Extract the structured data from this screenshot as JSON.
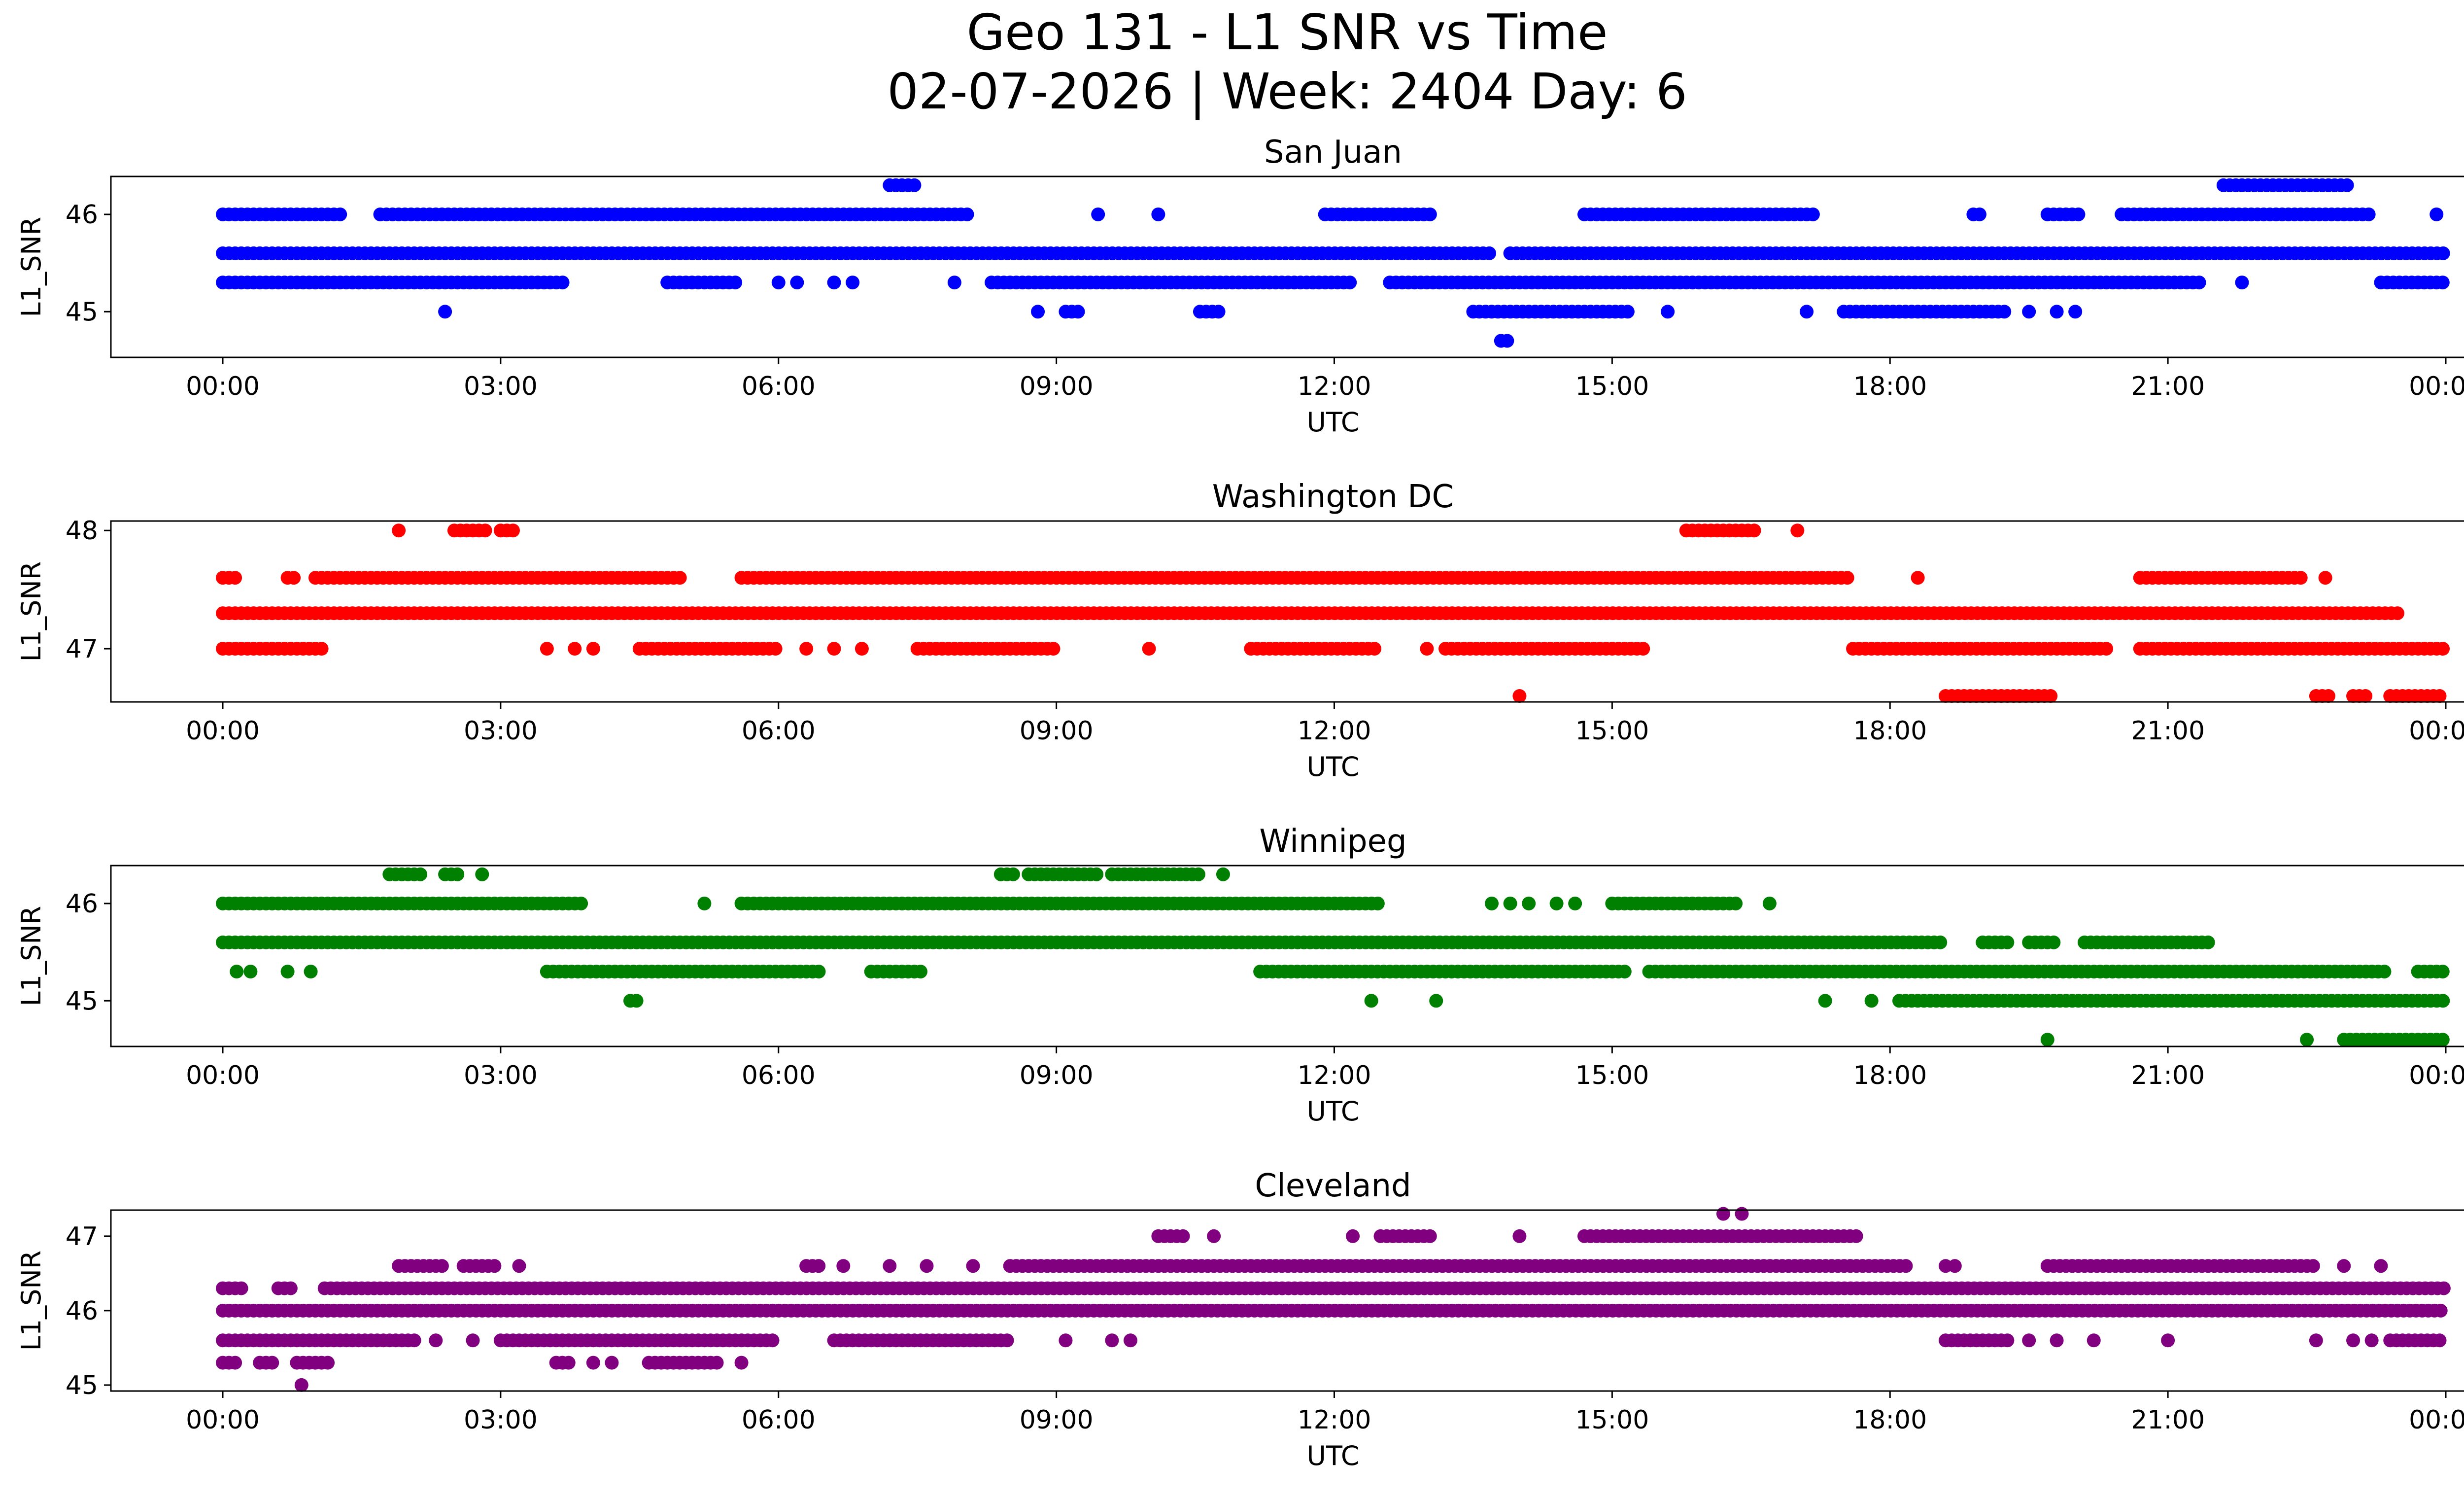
{
  "chart_data": {
    "title": "Geo 131 - L1 SNR vs Time",
    "subtitle": "02-07-2026 | Week: 2404 Day: 6",
    "type": "scatter",
    "x_unit": "hours UTC",
    "x_range": [
      0,
      24
    ],
    "x_ticks": [
      0,
      3,
      6,
      9,
      12,
      15,
      18,
      21,
      24
    ],
    "x_tick_labels": [
      "00:00",
      "03:00",
      "06:00",
      "09:00",
      "12:00",
      "15:00",
      "18:00",
      "21:00",
      "00:00"
    ],
    "subplots": [
      {
        "title": "San Juan",
        "xlabel": "UTC",
        "ylabel": "L1_SNR",
        "color": "#0000ff",
        "ylim": [
          44.53,
          46.39
        ],
        "yticks": [
          45,
          46
        ],
        "levels": [
          {
            "y": 46.3,
            "segments": [
              [
                7.2,
                7.5
              ],
              [
                21.6,
                23.0
              ]
            ]
          },
          {
            "y": 46.0,
            "segments": [
              [
                0.0,
                1.3
              ],
              [
                1.7,
                8.1
              ],
              [
                11.9,
                13.1
              ],
              [
                14.7,
                17.2
              ],
              [
                18.9,
                19.0
              ],
              [
                19.7,
                20.1
              ],
              [
                20.5,
                23.2
              ]
            ],
            "points": [
              9.45,
              10.1,
              23.9
            ]
          },
          {
            "y": 45.6,
            "segments": [
              [
                0.0,
                13.7
              ],
              [
                13.9,
                24.0
              ]
            ]
          },
          {
            "y": 45.3,
            "segments": [
              [
                0.0,
                3.7
              ],
              [
                4.8,
                5.6
              ],
              [
                8.3,
                12.2
              ],
              [
                12.6,
                21.4
              ],
              [
                23.3,
                24.0
              ]
            ],
            "points": [
              6.0,
              6.2,
              6.6,
              6.8,
              7.9,
              21.8
            ]
          },
          {
            "y": 45.0,
            "segments": [
              [
                13.5,
                15.2
              ],
              [
                17.5,
                19.3
              ],
              [
                10.55,
                10.8
              ],
              [
                9.1,
                9.3
              ]
            ],
            "points": [
              2.4,
              8.8,
              15.6,
              17.1,
              19.5,
              19.8,
              20.0
            ]
          },
          {
            "y": 44.7,
            "segments": [
              [
                13.8,
                13.9
              ]
            ]
          }
        ]
      },
      {
        "title": "Washington DC",
        "xlabel": "UTC",
        "ylabel": "L1_SNR",
        "color": "#ff0000",
        "ylim": [
          46.55,
          48.08
        ],
        "yticks": [
          47,
          48
        ],
        "levels": [
          {
            "y": 48.0,
            "segments": [
              [
                2.5,
                2.85
              ],
              [
                3.0,
                3.2
              ],
              [
                15.8,
                16.6
              ]
            ],
            "points": [
              1.9,
              17.0
            ]
          },
          {
            "y": 47.6,
            "segments": [
              [
                0.0,
                0.2
              ],
              [
                0.7,
                0.8
              ],
              [
                1.0,
                5.0
              ],
              [
                5.6,
                17.6
              ],
              [
                20.7,
                22.5
              ]
            ],
            "points": [
              18.3,
              22.7
            ]
          },
          {
            "y": 47.3,
            "segments": [
              [
                0.0,
                23.5
              ]
            ]
          },
          {
            "y": 47.0,
            "segments": [
              [
                0.0,
                1.1
              ],
              [
                4.5,
                6.0
              ],
              [
                7.5,
                9.0
              ],
              [
                11.1,
                12.5
              ],
              [
                13.2,
                15.4
              ],
              [
                17.6,
                20.4
              ],
              [
                20.7,
                24.0
              ]
            ],
            "points": [
              3.5,
              3.8,
              4.0,
              6.3,
              6.6,
              6.9,
              10.0,
              13.0
            ]
          },
          {
            "y": 46.6,
            "segments": [
              [
                18.6,
                19.8
              ],
              [
                22.6,
                22.75
              ],
              [
                23.0,
                23.2
              ],
              [
                23.4,
                24.0
              ]
            ],
            "points": [
              14.0
            ]
          }
        ]
      },
      {
        "title": "Winnipeg",
        "xlabel": "UTC",
        "ylabel": "L1_SNR",
        "color": "#008000",
        "ylim": [
          44.53,
          46.39
        ],
        "yticks": [
          45,
          46
        ],
        "levels": [
          {
            "y": 46.3,
            "segments": [
              [
                1.8,
                2.15
              ],
              [
                2.4,
                2.55
              ],
              [
                8.4,
                8.55
              ],
              [
                8.7,
                9.5
              ],
              [
                9.6,
                10.6
              ]
            ],
            "points": [
              2.8,
              10.8
            ]
          },
          {
            "y": 46.0,
            "segments": [
              [
                0.0,
                3.9
              ],
              [
                5.6,
                12.5
              ],
              [
                15.0,
                16.4
              ]
            ],
            "points": [
              5.2,
              13.7,
              13.9,
              14.1,
              14.4,
              14.6,
              16.7
            ]
          },
          {
            "y": 45.6,
            "segments": [
              [
                0.0,
                18.6
              ],
              [
                19.0,
                19.3
              ],
              [
                19.5,
                19.8
              ],
              [
                20.1,
                21.5
              ]
            ]
          },
          {
            "y": 45.3,
            "segments": [
              [
                3.5,
                6.5
              ],
              [
                7.0,
                7.6
              ],
              [
                11.2,
                15.2
              ],
              [
                15.4,
                23.4
              ],
              [
                23.7,
                24.0
              ]
            ],
            "points": [
              0.15,
              0.3,
              0.7,
              0.95
            ]
          },
          {
            "y": 45.0,
            "segments": [
              [
                18.1,
                24.0
              ],
              [
                4.4,
                4.5
              ]
            ],
            "points": [
              12.4,
              13.1,
              17.3,
              17.8
            ]
          },
          {
            "y": 44.6,
            "segments": [
              [
                22.9,
                24.0
              ]
            ],
            "points": [
              19.7,
              22.5
            ]
          }
        ]
      },
      {
        "title": "Cleveland",
        "xlabel": "UTC",
        "ylabel": "L1_SNR",
        "color": "#800080",
        "ylim": [
          44.92,
          47.35
        ],
        "yticks": [
          45,
          46,
          47
        ],
        "levels": [
          {
            "y": 47.3,
            "points": [
              16.2,
              16.4
            ]
          },
          {
            "y": 47.0,
            "segments": [
              [
                10.1,
                10.4
              ],
              [
                12.5,
                13.1
              ],
              [
                14.7,
                17.7
              ]
            ],
            "points": [
              10.7,
              12.2,
              14.0
            ]
          },
          {
            "y": 46.6,
            "segments": [
              [
                1.9,
                2.4
              ],
              [
                2.6,
                3.0
              ],
              [
                6.3,
                6.5
              ],
              [
                8.5,
                18.2
              ],
              [
                19.7,
                22.6
              ]
            ],
            "points": [
              3.2,
              6.7,
              7.2,
              7.6,
              8.1,
              18.6,
              18.7,
              22.9,
              23.3
            ]
          },
          {
            "y": 46.3,
            "segments": [
              [
                0.0,
                0.25
              ],
              [
                0.6,
                0.8
              ],
              [
                1.1,
                24.0
              ]
            ]
          },
          {
            "y": 46.0,
            "segments": [
              [
                0.0,
                24.0
              ]
            ]
          },
          {
            "y": 45.6,
            "segments": [
              [
                0.0,
                2.1
              ],
              [
                3.0,
                6.0
              ],
              [
                6.6,
                8.5
              ],
              [
                18.6,
                19.3
              ],
              [
                23.4,
                24.0
              ]
            ],
            "points": [
              2.3,
              2.7,
              9.1,
              9.6,
              9.8,
              19.5,
              19.8,
              20.2,
              21.0,
              22.6,
              23.0,
              23.2
            ]
          },
          {
            "y": 45.3,
            "segments": [
              [
                0.0,
                0.2
              ],
              [
                0.4,
                0.6
              ],
              [
                0.8,
                1.2
              ],
              [
                3.6,
                3.8
              ],
              [
                4.6,
                5.4
              ]
            ],
            "points": [
              4.0,
              4.2,
              5.6
            ]
          },
          {
            "y": 45.0,
            "points": [
              0.85
            ]
          }
        ]
      }
    ]
  }
}
